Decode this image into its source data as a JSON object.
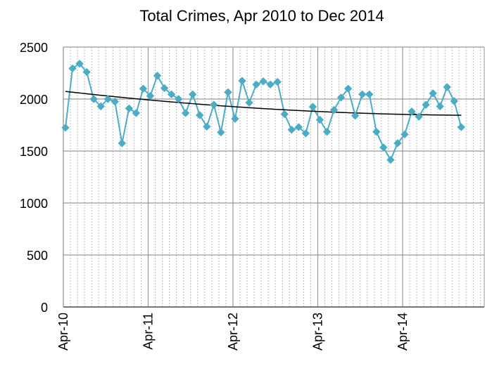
{
  "chart_data": {
    "type": "line",
    "title": "Total Crimes, Apr 2010 to Dec 2014",
    "categories": [
      "Apr-10",
      null,
      null,
      null,
      null,
      null,
      null,
      null,
      null,
      null,
      null,
      null,
      "Apr-11",
      null,
      null,
      null,
      null,
      null,
      null,
      null,
      null,
      null,
      null,
      null,
      "Apr-12",
      null,
      null,
      null,
      null,
      null,
      null,
      null,
      null,
      null,
      null,
      null,
      "Apr-13",
      null,
      null,
      null,
      null,
      null,
      null,
      null,
      null,
      null,
      null,
      null,
      "Apr-14",
      null,
      null,
      null,
      null,
      null,
      null,
      null,
      null
    ],
    "series": [
      {
        "name": "Total Crimes",
        "color": "#4bacc6",
        "values": [
          1725,
          2295,
          2340,
          2260,
          2000,
          1930,
          2000,
          1975,
          1575,
          1910,
          1865,
          2100,
          2030,
          2225,
          2105,
          2045,
          2000,
          1865,
          2045,
          1845,
          1735,
          1945,
          1680,
          2065,
          1810,
          2175,
          1965,
          2140,
          2170,
          2140,
          2165,
          1855,
          1705,
          1730,
          1670,
          1925,
          1800,
          1685,
          1895,
          2015,
          2100,
          1840,
          2045,
          2045,
          1685,
          1535,
          1415,
          1575,
          1660,
          1880,
          1830,
          1945,
          2055,
          1930,
          2115,
          1980,
          1730
        ]
      }
    ],
    "trendline": {
      "type": "polynomial",
      "order": 2,
      "color": "#000000"
    },
    "ylim": [
      0,
      2500
    ],
    "yticks": [
      0,
      500,
      1000,
      1500,
      2000,
      2500
    ],
    "grid": true
  }
}
